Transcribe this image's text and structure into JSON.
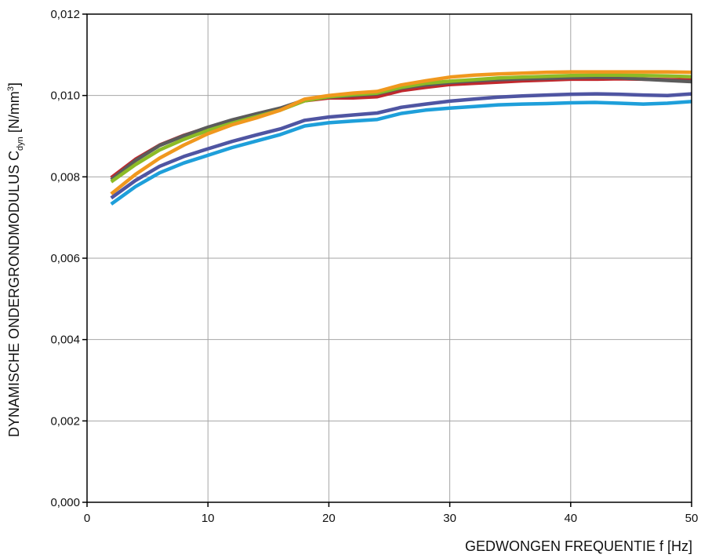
{
  "chart_data": {
    "type": "line",
    "xlabel": "GEDWONGEN FREQUENTIE f [Hz]",
    "ylabel": {
      "main": "DYNAMISCHE ONDERGRONDMODULUS C",
      "subscript": "dyn",
      "unit_pre": " [N/mm",
      "unit_sup": "3",
      "unit_post": "]"
    },
    "xlim": [
      0,
      50
    ],
    "ylim": [
      0,
      0.012
    ],
    "x_ticks": [
      "0",
      "10",
      "20",
      "30",
      "40",
      "50"
    ],
    "y_ticks": [
      "0,000",
      "0,002",
      "0,004",
      "0,006",
      "0,008",
      "0,010",
      "0,012"
    ],
    "grid": true,
    "legend": "none",
    "x": [
      2,
      4,
      6,
      8,
      10,
      12,
      14,
      16,
      18,
      20,
      22,
      24,
      26,
      28,
      30,
      32,
      34,
      36,
      38,
      40,
      42,
      44,
      46,
      48,
      50
    ],
    "series": [
      {
        "color": "#c0282d",
        "values": [
          0.00798,
          0.00843,
          0.00878,
          0.00902,
          0.00921,
          0.00938,
          0.00953,
          0.00967,
          0.00987,
          0.00994,
          0.00994,
          0.00997,
          0.01012,
          0.0102,
          0.01027,
          0.0103,
          0.01033,
          0.01036,
          0.01038,
          0.0104,
          0.0104,
          0.01041,
          0.0104,
          0.01039,
          0.01038
        ]
      },
      {
        "color": "#5b5b5b",
        "values": [
          0.00793,
          0.0084,
          0.00877,
          0.00901,
          0.00922,
          0.0094,
          0.00955,
          0.00969,
          0.00989,
          0.00996,
          0.01,
          0.01004,
          0.01018,
          0.01026,
          0.01032,
          0.01036,
          0.01039,
          0.01041,
          0.01042,
          0.01044,
          0.01045,
          0.01044,
          0.0104,
          0.01037,
          0.01034
        ]
      },
      {
        "color": "#8cbb26",
        "values": [
          0.00788,
          0.0083,
          0.00866,
          0.00892,
          0.00914,
          0.00932,
          0.00948,
          0.00964,
          0.00987,
          0.00997,
          0.01002,
          0.01006,
          0.0102,
          0.0103,
          0.01035,
          0.01039,
          0.01043,
          0.01045,
          0.01047,
          0.01049,
          0.0105,
          0.0105,
          0.01049,
          0.01048,
          0.01046
        ]
      },
      {
        "color": "#f0981e",
        "values": [
          0.00758,
          0.00806,
          0.00846,
          0.00878,
          0.00906,
          0.00928,
          0.00945,
          0.00964,
          0.00991,
          0.01,
          0.01006,
          0.0101,
          0.01026,
          0.01036,
          0.01045,
          0.0105,
          0.01053,
          0.01055,
          0.01057,
          0.01058,
          0.01058,
          0.01058,
          0.01058,
          0.01058,
          0.01057
        ]
      },
      {
        "color": "#4f55a2",
        "values": [
          0.00748,
          0.00791,
          0.00826,
          0.0085,
          0.00869,
          0.00887,
          0.00903,
          0.00918,
          0.00939,
          0.00947,
          0.00952,
          0.00957,
          0.00971,
          0.00979,
          0.00986,
          0.00991,
          0.00996,
          0.00999,
          0.01001,
          0.01003,
          0.01004,
          0.01003,
          0.01001,
          0.01,
          0.01004
        ]
      },
      {
        "color": "#1e9fda",
        "values": [
          0.00733,
          0.00776,
          0.0081,
          0.00834,
          0.00853,
          0.00872,
          0.00888,
          0.00904,
          0.00925,
          0.00933,
          0.00937,
          0.00941,
          0.00956,
          0.00964,
          0.00969,
          0.00973,
          0.00977,
          0.00979,
          0.0098,
          0.00982,
          0.00983,
          0.00981,
          0.00979,
          0.00981,
          0.00985
        ]
      }
    ]
  }
}
